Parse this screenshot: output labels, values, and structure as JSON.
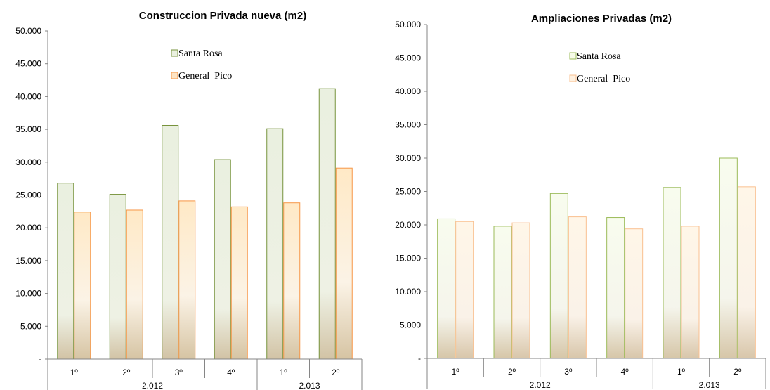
{
  "chart_data": [
    {
      "type": "bar",
      "title": "Construccion Privada nueva (m2)",
      "categories": [
        "1º",
        "2º",
        "3º",
        "4º",
        "1º",
        "2º"
      ],
      "groups": [
        {
          "label": "2.012",
          "categories": [
            "1º",
            "2º",
            "3º",
            "4º"
          ]
        },
        {
          "label": "2.013",
          "categories": [
            "1º",
            "2º"
          ]
        }
      ],
      "series": [
        {
          "name": "Santa Rosa",
          "values": [
            26800,
            25100,
            35600,
            30400,
            35100,
            41200
          ],
          "color": "#77933C"
        },
        {
          "name": "General  Pico",
          "values": [
            22400,
            22700,
            24100,
            23200,
            23800,
            29100
          ],
          "color": "#F79646"
        }
      ],
      "ylim": [
        0,
        50000
      ],
      "yticks": [
        "-",
        "5.000",
        "10.000",
        "15.000",
        "20.000",
        "25.000",
        "30.000",
        "35.000",
        "40.000",
        "45.000",
        "50.000"
      ],
      "legend": "inside-top-center",
      "grid": false
    },
    {
      "type": "bar",
      "title": "Ampliaciones Privadas (m2)",
      "categories": [
        "1º",
        "2º",
        "3º",
        "4º",
        "1º",
        "2º"
      ],
      "groups": [
        {
          "label": "2.012",
          "categories": [
            "1º",
            "2º",
            "3º",
            "4º"
          ]
        },
        {
          "label": "2.013",
          "categories": [
            "1º",
            "2º"
          ]
        }
      ],
      "series": [
        {
          "name": "Santa Rosa",
          "values": [
            20900,
            19800,
            24700,
            21100,
            25600,
            30000
          ],
          "color": "#9BBB59"
        },
        {
          "name": "General  Pico",
          "values": [
            20500,
            20300,
            21200,
            19400,
            19800,
            25700
          ],
          "color": "#FAC090"
        }
      ],
      "ylim": [
        0,
        50000
      ],
      "yticks": [
        "-",
        "5.000",
        "10.000",
        "15.000",
        "20.000",
        "25.000",
        "30.000",
        "35.000",
        "40.000",
        "45.000",
        "50.000"
      ],
      "legend": "inside-top-center",
      "grid": false
    }
  ]
}
